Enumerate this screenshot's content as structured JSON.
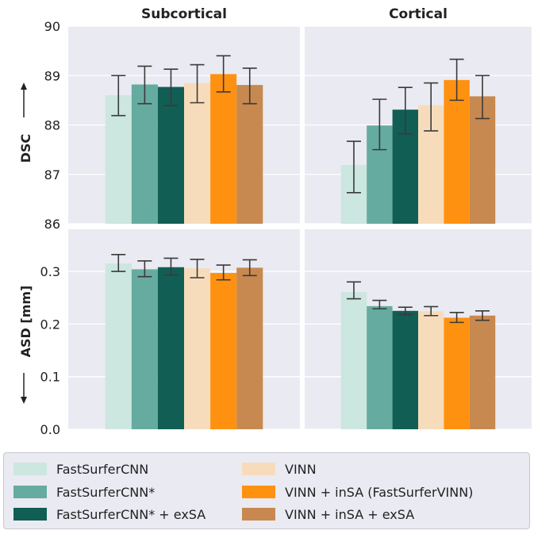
{
  "columns": [
    "Subcortical",
    "Cortical"
  ],
  "rows": [
    {
      "label_text": "DSC",
      "arrow": "up"
    },
    {
      "label_text": "ASD [mm]",
      "arrow": "down"
    }
  ],
  "series_names": [
    "FastSurferCNN",
    "FastSurferCNN*",
    "FastSurferCNN* + exSA",
    "VINN",
    "VINN + inSA (FastSurferVINN)",
    "VINN + inSA + exSA"
  ],
  "colors": [
    "#cce6e0",
    "#66aba0",
    "#115e55",
    "#f7dcbc",
    "#ff9110",
    "#c78950"
  ],
  "chart_data": [
    {
      "type": "bar",
      "title": "Subcortical",
      "ylabel": "DSC",
      "ylim": [
        86,
        90
      ],
      "yticks": [
        "86",
        "87",
        "88",
        "89",
        "90"
      ],
      "grid": true,
      "series": [
        {
          "name": "FastSurferCNN",
          "value": 88.6,
          "err_low": 88.19,
          "err_high": 89.0
        },
        {
          "name": "FastSurferCNN*",
          "value": 88.82,
          "err_low": 88.43,
          "err_high": 89.19
        },
        {
          "name": "FastSurferCNN* + exSA",
          "value": 88.77,
          "err_low": 88.39,
          "err_high": 89.13
        },
        {
          "name": "VINN",
          "value": 88.85,
          "err_low": 88.45,
          "err_high": 89.22
        },
        {
          "name": "VINN + inSA (FastSurferVINN)",
          "value": 89.03,
          "err_low": 88.67,
          "err_high": 89.4
        },
        {
          "name": "VINN + inSA + exSA",
          "value": 88.81,
          "err_low": 88.43,
          "err_high": 89.15
        }
      ]
    },
    {
      "type": "bar",
      "title": "Cortical",
      "ylabel": "DSC",
      "ylim": [
        86,
        90
      ],
      "grid": true,
      "series": [
        {
          "name": "FastSurferCNN",
          "value": 87.19,
          "err_low": 86.63,
          "err_high": 87.67
        },
        {
          "name": "FastSurferCNN*",
          "value": 87.99,
          "err_low": 87.5,
          "err_high": 88.52
        },
        {
          "name": "FastSurferCNN* + exSA",
          "value": 88.31,
          "err_low": 87.82,
          "err_high": 88.76
        },
        {
          "name": "VINN",
          "value": 88.4,
          "err_low": 87.88,
          "err_high": 88.85
        },
        {
          "name": "VINN + inSA (FastSurferVINN)",
          "value": 88.91,
          "err_low": 88.5,
          "err_high": 89.33
        },
        {
          "name": "VINN + inSA + exSA",
          "value": 88.58,
          "err_low": 88.13,
          "err_high": 89.0
        }
      ]
    },
    {
      "type": "bar",
      "title": "Subcortical",
      "ylabel": "ASD [mm]",
      "ylim": [
        0,
        0.38
      ],
      "yticks": [
        "0.0",
        "0.1",
        "0.2",
        "0.3"
      ],
      "grid": true,
      "series": [
        {
          "name": "FastSurferCNN",
          "value": 0.315,
          "err_low": 0.3,
          "err_high": 0.332
        },
        {
          "name": "FastSurferCNN*",
          "value": 0.304,
          "err_low": 0.29,
          "err_high": 0.32
        },
        {
          "name": "FastSurferCNN* + exSA",
          "value": 0.308,
          "err_low": 0.293,
          "err_high": 0.325
        },
        {
          "name": "VINN",
          "value": 0.306,
          "err_low": 0.288,
          "err_high": 0.323
        },
        {
          "name": "VINN + inSA (FastSurferVINN)",
          "value": 0.297,
          "err_low": 0.284,
          "err_high": 0.312
        },
        {
          "name": "VINN + inSA + exSA",
          "value": 0.307,
          "err_low": 0.292,
          "err_high": 0.322
        }
      ]
    },
    {
      "type": "bar",
      "title": "Cortical",
      "ylabel": "ASD [mm]",
      "ylim": [
        0,
        0.38
      ],
      "grid": true,
      "series": [
        {
          "name": "FastSurferCNN",
          "value": 0.261,
          "err_low": 0.248,
          "err_high": 0.28
        },
        {
          "name": "FastSurferCNN*",
          "value": 0.234,
          "err_low": 0.229,
          "err_high": 0.245
        },
        {
          "name": "FastSurferCNN* + exSA",
          "value": 0.225,
          "err_low": 0.218,
          "err_high": 0.232
        },
        {
          "name": "VINN",
          "value": 0.224,
          "err_low": 0.216,
          "err_high": 0.233
        },
        {
          "name": "VINN + inSA (FastSurferVINN)",
          "value": 0.212,
          "err_low": 0.203,
          "err_high": 0.222
        },
        {
          "name": "VINN + inSA + exSA",
          "value": 0.216,
          "err_low": 0.207,
          "err_high": 0.225
        }
      ]
    }
  ],
  "legend": {
    "placement": "bottom"
  }
}
